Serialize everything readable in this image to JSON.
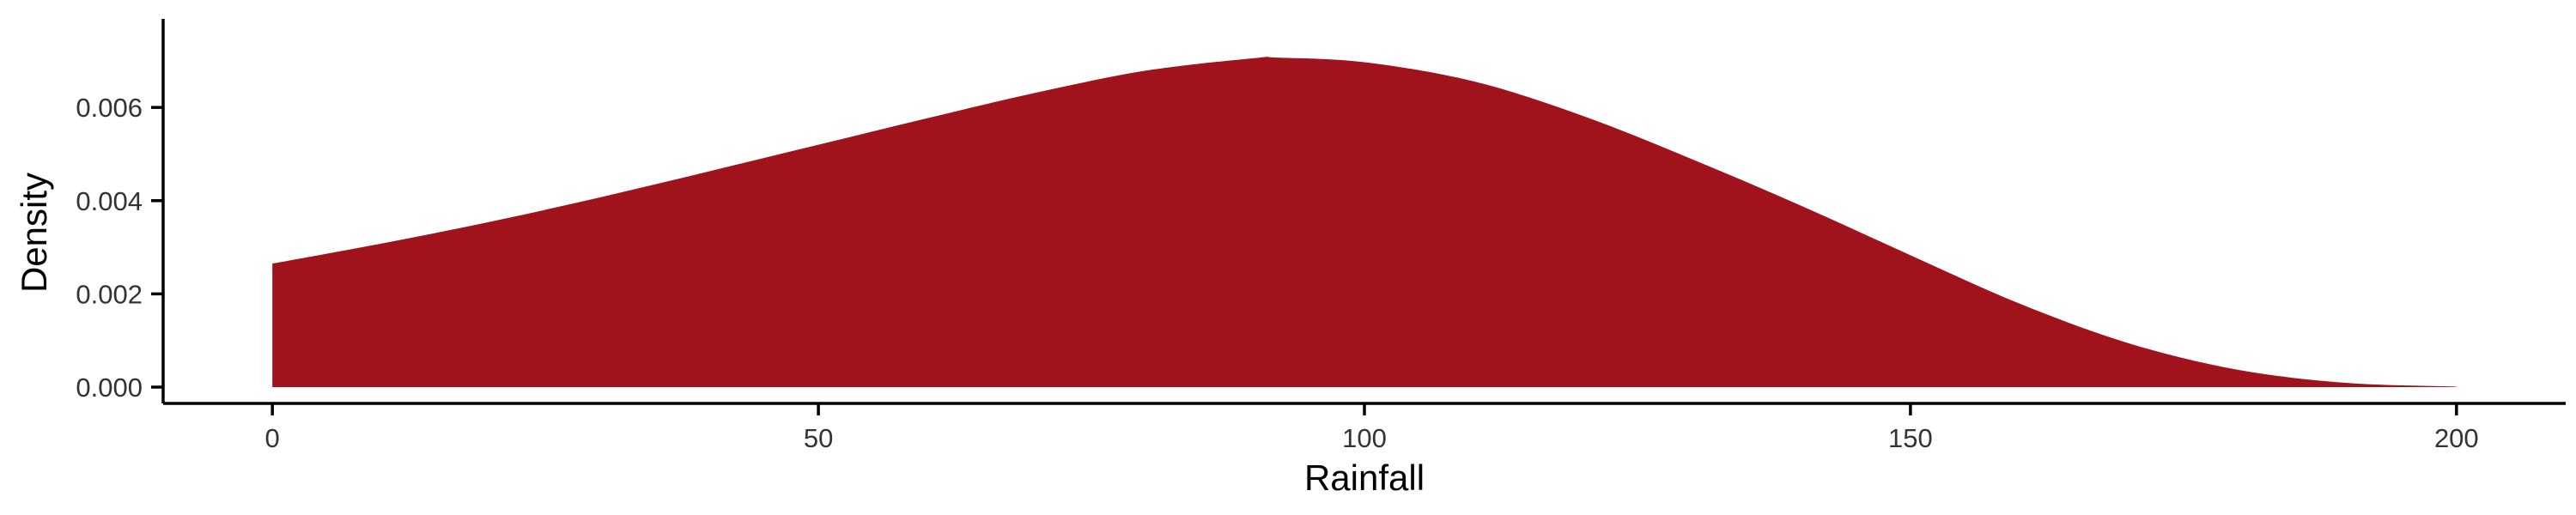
{
  "chart_data": {
    "type": "area",
    "xlabel": "Rainfall",
    "ylabel": "Density",
    "xlim": [
      -10,
      210
    ],
    "ylim": [
      -0.00035,
      0.0079
    ],
    "x_ticks": [
      0,
      50,
      100,
      150,
      200
    ],
    "x_tick_labels": [
      "0",
      "50",
      "100",
      "150",
      "200"
    ],
    "y_ticks": [
      0,
      0.002,
      0.004,
      0.006
    ],
    "y_tick_labels": [
      "0.000",
      "0.002",
      "0.004",
      "0.006"
    ],
    "grid": false,
    "legend": "none",
    "fill_color": "#A0121C",
    "series": [
      {
        "x": [
          0,
          10,
          20,
          30,
          40,
          50,
          60,
          70,
          80,
          90,
          92,
          100,
          110,
          120,
          130,
          140,
          150,
          160,
          170,
          180,
          190,
          200
        ],
        "values": [
          0.00265,
          0.00308,
          0.00355,
          0.00407,
          0.00463,
          0.0052,
          0.00577,
          0.00632,
          0.00679,
          0.00706,
          0.00707,
          0.00697,
          0.00656,
          0.00582,
          0.00489,
          0.00389,
          0.00283,
          0.00179,
          0.00094,
          0.00037,
          9e-05,
          1e-05
        ]
      }
    ]
  }
}
